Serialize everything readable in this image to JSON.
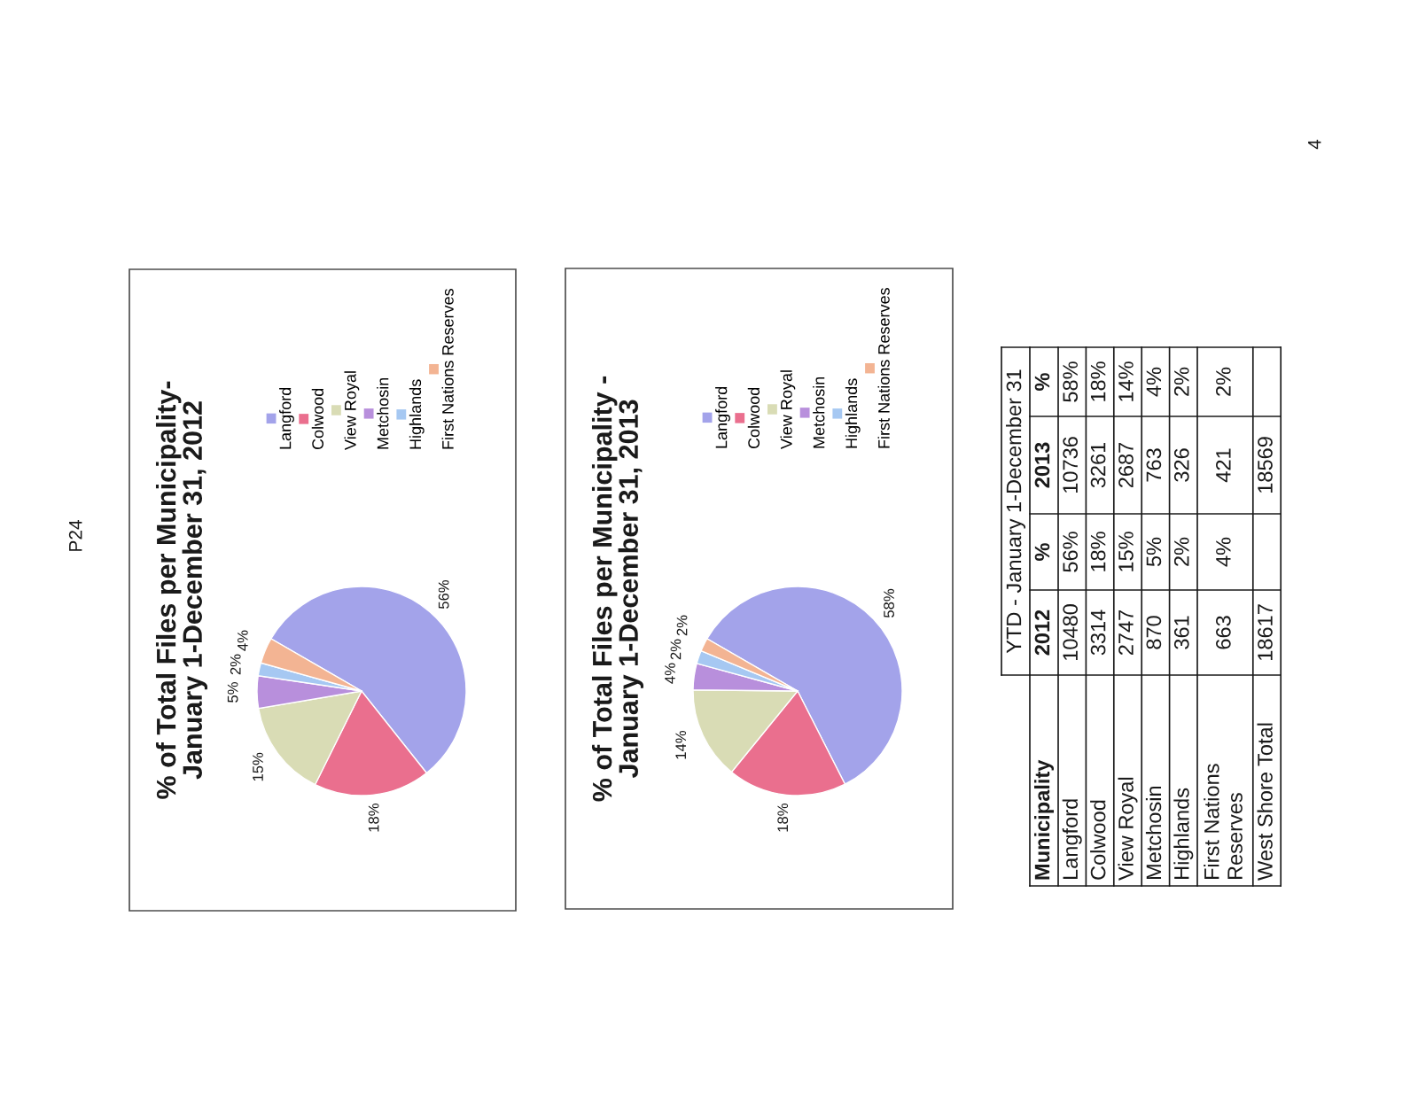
{
  "chart_data": [
    {
      "type": "pie",
      "title": "% of Total Files per Municipality-\nJanuary 1-December 31, 2012",
      "categories": [
        "Langford",
        "Colwood",
        "View Royal",
        "Metchosin",
        "Highlands",
        "First Nations Reserves"
      ],
      "values": [
        56,
        18,
        15,
        5,
        2,
        4
      ],
      "value_labels": [
        "56%",
        "18%",
        "15%",
        "5%",
        "2%",
        "4%"
      ],
      "colors": [
        "#a3a3ea",
        "#ea6f8e",
        "#d9dcb5",
        "#b88fdc",
        "#a6c8f2",
        "#f3b493"
      ],
      "legend": "top",
      "annotations": [
        "P24"
      ]
    },
    {
      "type": "pie",
      "title": "% of Total Files per Municipality -\nJanuary 1-December 31, 2013",
      "categories": [
        "Langford",
        "Colwood",
        "View Royal",
        "Metchosin",
        "Highlands",
        "First Nations Reserves"
      ],
      "values": [
        58,
        18,
        14,
        4,
        2,
        2
      ],
      "value_labels": [
        "58%",
        "18%",
        "14%",
        "4%",
        "2%",
        "2%"
      ],
      "colors": [
        "#a3a3ea",
        "#ea6f8e",
        "#d9dcb5",
        "#b88fdc",
        "#a6c8f2",
        "#f3b493"
      ],
      "legend": "top"
    },
    {
      "type": "other",
      "title": "YTD - January 1-December 31",
      "ylabel": "Municipality",
      "categories": [
        "2012",
        "%",
        "2013",
        "%"
      ],
      "y_categories": [
        "Langford",
        "Colwood",
        "View Royal",
        "Metchosin",
        "Highlands",
        "First Nations\nReserves",
        "West Shore Total"
      ],
      "cell_labels": [
        [
          "10480",
          "56%",
          "10736",
          "58%"
        ],
        [
          "3314",
          "18%",
          "3261",
          "18%"
        ],
        [
          "2747",
          "15%",
          "2687",
          "14%"
        ],
        [
          "870",
          "5%",
          "763",
          "4%"
        ],
        [
          "361",
          "2%",
          "326",
          "2%"
        ],
        [
          "663",
          "4%",
          "421",
          "2%"
        ],
        [
          "18617",
          null,
          "18569",
          null
        ]
      ],
      "annotations": [
        "4"
      ]
    }
  ]
}
